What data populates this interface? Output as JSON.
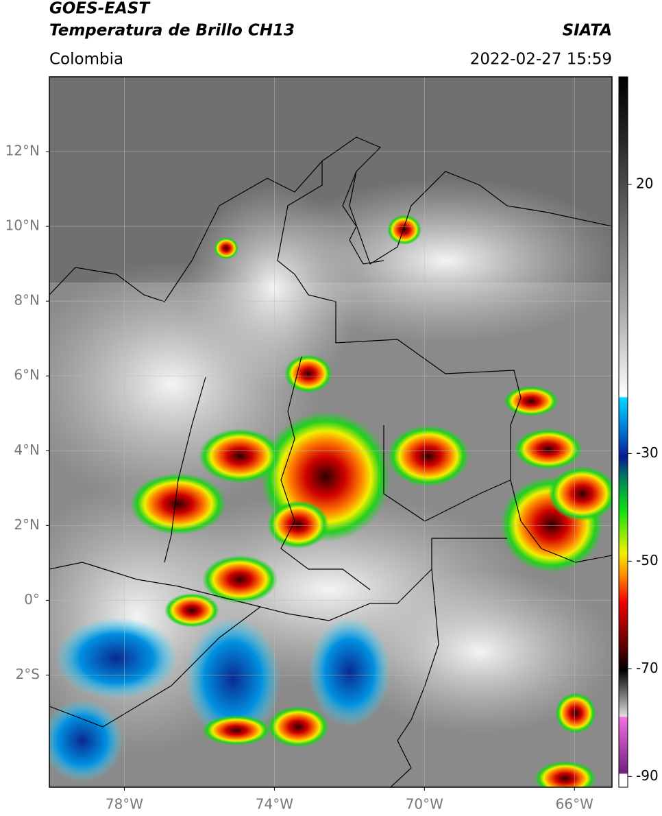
{
  "header": {
    "title": "GOES-EAST",
    "subtitle": "Temperatura de Brillo CH13",
    "region": "Colombia",
    "source": "SIATA",
    "datetime": "2022-02-27 15:59"
  },
  "map": {
    "xlim": [
      -80,
      -65
    ],
    "ylim": [
      -5,
      14
    ],
    "xticks": [
      {
        "value": -78,
        "label": "78°W"
      },
      {
        "value": -74,
        "label": "74°W"
      },
      {
        "value": -70,
        "label": "70°W"
      },
      {
        "value": -66,
        "label": "66°W"
      }
    ],
    "yticks": [
      {
        "value": 12,
        "label": "12°N"
      },
      {
        "value": 10,
        "label": "10°N"
      },
      {
        "value": 8,
        "label": "8°N"
      },
      {
        "value": 6,
        "label": "6°N"
      },
      {
        "value": 4,
        "label": "4°N"
      },
      {
        "value": 2,
        "label": "2°N"
      },
      {
        "value": 0,
        "label": "0°"
      },
      {
        "value": -2,
        "label": "2°S"
      }
    ]
  },
  "colorbar": {
    "lim": [
      -92,
      40
    ],
    "ticks": [
      20,
      -30,
      -50,
      -70,
      -90
    ]
  }
}
